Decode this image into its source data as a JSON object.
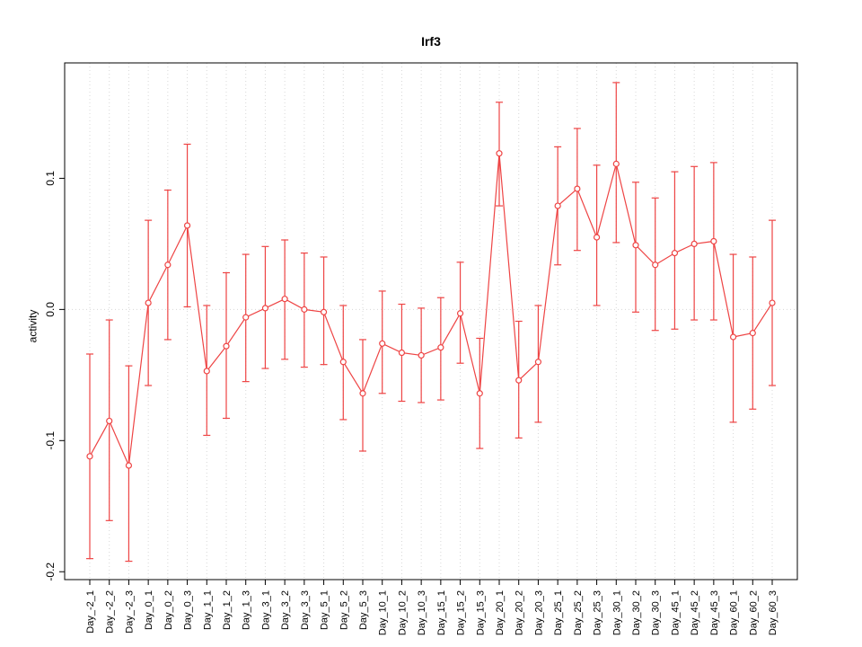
{
  "chart_data": {
    "type": "scatter",
    "title": "Irf3",
    "xlabel": "",
    "ylabel": "activity",
    "ylim": [
      -0.206,
      0.188
    ],
    "yticks": [
      -0.2,
      -0.1,
      0.0,
      0.1
    ],
    "ytick_labels": [
      "-0.2",
      "-0.1",
      "0.0",
      "0.1"
    ],
    "grid": "dotted vertical per category, dotted horizontal at 0",
    "legend": "none",
    "point_style": "open-circle with error bars, connected by line",
    "series_color": "#ee4444",
    "grid_color": "#d8d8d8",
    "axis_color": "#000000",
    "categories": [
      "Day_-2_1",
      "Day_-2_2",
      "Day_-2_3",
      "Day_0_1",
      "Day_0_2",
      "Day_0_3",
      "Day_1_1",
      "Day_1_2",
      "Day_1_3",
      "Day_3_1",
      "Day_3_2",
      "Day_3_3",
      "Day_5_1",
      "Day_5_2",
      "Day_5_3",
      "Day_10_1",
      "Day_10_2",
      "Day_10_3",
      "Day_15_1",
      "Day_15_2",
      "Day_15_3",
      "Day_20_1",
      "Day_20_2",
      "Day_20_3",
      "Day_25_1",
      "Day_25_2",
      "Day_25_3",
      "Day_30_1",
      "Day_30_2",
      "Day_30_3",
      "Day_45_1",
      "Day_45_2",
      "Day_45_3",
      "Day_60_1",
      "Day_60_2",
      "Day_60_3"
    ],
    "series": [
      {
        "name": "activity",
        "values": [
          -0.112,
          -0.085,
          -0.119,
          0.005,
          0.034,
          0.064,
          -0.047,
          -0.028,
          -0.006,
          0.001,
          0.008,
          0.0,
          -0.002,
          -0.04,
          -0.064,
          -0.026,
          -0.033,
          -0.035,
          -0.029,
          -0.003,
          -0.064,
          0.119,
          -0.054,
          -0.04,
          0.079,
          0.092,
          0.055,
          0.111,
          0.049,
          0.034,
          0.043,
          0.05,
          0.052,
          -0.021,
          -0.018,
          0.005
        ],
        "err_lo": [
          -0.19,
          -0.161,
          -0.192,
          -0.058,
          -0.023,
          0.002,
          -0.096,
          -0.083,
          -0.055,
          -0.045,
          -0.038,
          -0.044,
          -0.042,
          -0.084,
          -0.108,
          -0.064,
          -0.07,
          -0.071,
          -0.069,
          -0.041,
          -0.106,
          0.079,
          -0.098,
          -0.086,
          0.034,
          0.045,
          0.003,
          0.051,
          -0.002,
          -0.016,
          -0.015,
          -0.008,
          -0.008,
          -0.086,
          -0.076,
          -0.058
        ],
        "err_hi": [
          -0.034,
          -0.008,
          -0.043,
          0.068,
          0.091,
          0.126,
          0.003,
          0.028,
          0.042,
          0.048,
          0.053,
          0.043,
          0.04,
          0.003,
          -0.023,
          0.014,
          0.004,
          0.001,
          0.009,
          0.036,
          -0.022,
          0.158,
          -0.009,
          0.003,
          0.124,
          0.138,
          0.11,
          0.173,
          0.097,
          0.085,
          0.105,
          0.109,
          0.112,
          0.042,
          0.04,
          0.068
        ]
      }
    ]
  }
}
